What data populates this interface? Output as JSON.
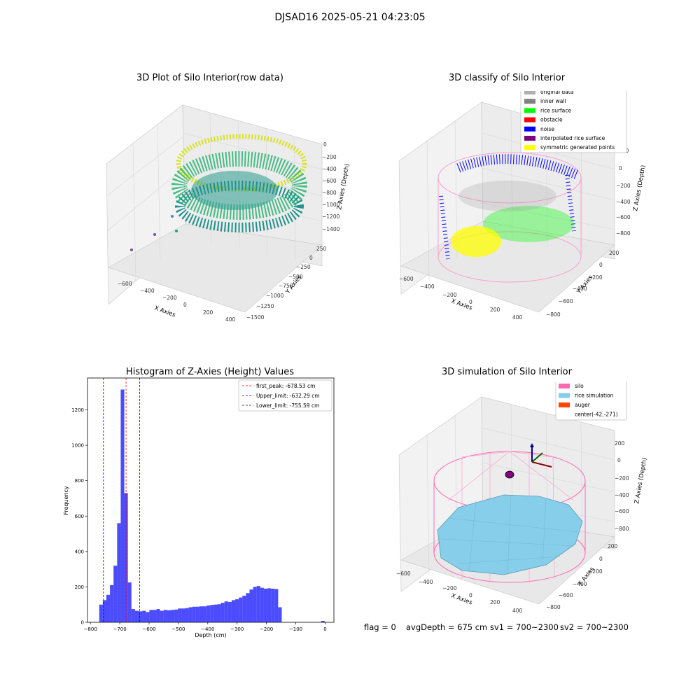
{
  "figure": {
    "suptitle": "DJSAD16 2025-05-21 04:23:05"
  },
  "panels": {
    "raw": {
      "title": "3D Plot of Silo Interior(row data)",
      "xlabel": "X Axies",
      "ylabel": "Y Axies",
      "zlabel": "Z Axies (Depth)",
      "xticks": [
        "−600",
        "−400",
        "−200",
        "0",
        "200",
        "400"
      ],
      "yticks": [
        "250",
        "0",
        "−250",
        "−500",
        "−750",
        "−1000",
        "−1250",
        "−1500"
      ],
      "zticks": [
        "0",
        "−200",
        "−400",
        "−600",
        "−800",
        "−1000",
        "−1200",
        "−1400"
      ]
    },
    "classify": {
      "title": "3D classify of Silo Interior",
      "xlabel": "X Axies",
      "ylabel": "Y Axies",
      "zlabel": "Z Axies (Depth)",
      "xticks": [
        "−600",
        "−400",
        "−200",
        "0",
        "200",
        "400"
      ],
      "yticks": [
        "200",
        "0",
        "−200",
        "−400",
        "−600",
        "−800"
      ],
      "zticks": [
        "200",
        "0",
        "−200",
        "−400",
        "−600",
        "−800"
      ],
      "legend": [
        {
          "label": "original data",
          "color": "#b0b0b0"
        },
        {
          "label": "inner wall",
          "color": "#808080"
        },
        {
          "label": "rice surface",
          "color": "#00ff00"
        },
        {
          "label": "obstacle",
          "color": "#ff0000"
        },
        {
          "label": "noise",
          "color": "#0000ff"
        },
        {
          "label": "interpolated rice surface",
          "color": "#800080"
        },
        {
          "label": "symmetric generated points",
          "color": "#ffff00"
        }
      ]
    },
    "simulation": {
      "title": "3D simulation of Silo Interior",
      "xlabel": "X Axies",
      "ylabel": "Y Axies",
      "zlabel": "Z Axies (Depth)",
      "xticks": [
        "−600",
        "−400",
        "−200",
        "0",
        "200",
        "400"
      ],
      "yticks": [
        "200",
        "0",
        "−200",
        "−400",
        "−600",
        "−800"
      ],
      "zticks": [
        "200",
        "0",
        "−200",
        "−400",
        "−600",
        "−800"
      ],
      "legend": [
        {
          "label": "silo",
          "color": "#ff69b4"
        },
        {
          "label": "rice simulation",
          "color": "#87ceeb"
        },
        {
          "label": "auger",
          "color": "#ff4500"
        },
        {
          "label": "center(-42,-271)",
          "color": ""
        }
      ]
    }
  },
  "status": {
    "flag": "flag = 0",
    "avg": "avgDepth = 675 cm",
    "sv1": "sv1 = 700~2300",
    "sv2": "sv2 = 700~2300"
  },
  "chart_data": [
    {
      "type": "bar",
      "title": "Histogram of Z-Axies (Height) Values",
      "xlabel": "Depth (cm)",
      "ylabel": "Frequency",
      "xlim": [
        -810,
        30
      ],
      "ylim": [
        0,
        1380
      ],
      "xticks": [
        -800,
        -700,
        -600,
        -500,
        -400,
        -300,
        -200,
        -100,
        0
      ],
      "xtick_labels": [
        "−800",
        "−700",
        "−600",
        "−500",
        "−400",
        "−300",
        "−200",
        "−100",
        "0"
      ],
      "yticks": [
        0,
        200,
        400,
        600,
        800,
        1000,
        1200
      ],
      "bar_color": "#0000ff",
      "bar_opacity": 0.7,
      "bin_width": 12.2,
      "bin_starts": [
        -770,
        -757.8,
        -745.6,
        -733.4,
        -721.2,
        -709,
        -696.8,
        -684.6,
        -672.4,
        -660.2,
        -648,
        -635.8,
        -623.6,
        -611.4,
        -599.2,
        -587,
        -574.8,
        -562.6,
        -550.4,
        -538.2,
        -526,
        -513.8,
        -501.6,
        -489.4,
        -477.2,
        -465,
        -452.8,
        -440.6,
        -428.4,
        -416.2,
        -404,
        -391.8,
        -379.6,
        -367.4,
        -355.2,
        -343,
        -330.8,
        -318.6,
        -306.4,
        -294.2,
        -282,
        -269.8,
        -257.6,
        -245.4,
        -233.2,
        -221,
        -208.8,
        -196.6,
        -184.4,
        -172.2,
        -160,
        -147.8,
        -135.6,
        -123.4,
        -111.2,
        -99,
        -86.8,
        -74.6,
        -62.4,
        -50.2,
        -38,
        -25.8,
        -13.6,
        -1.4
      ],
      "values": [
        100,
        125,
        155,
        210,
        320,
        560,
        1315,
        730,
        225,
        75,
        65,
        62,
        65,
        58,
        70,
        70,
        75,
        65,
        70,
        68,
        70,
        72,
        78,
        78,
        80,
        85,
        88,
        88,
        90,
        90,
        95,
        98,
        100,
        102,
        110,
        118,
        115,
        125,
        130,
        140,
        150,
        165,
        185,
        200,
        205,
        195,
        190,
        192,
        190,
        188,
        85,
        0,
        0,
        0,
        0,
        0,
        0,
        0,
        0,
        0,
        0,
        0,
        8,
        0
      ],
      "vlines": [
        {
          "label": "first_peak: -678.53 cm",
          "x": -678.53,
          "color": "#ff0000"
        },
        {
          "label": "Upper_limit: -632.29 cm",
          "x": -632.29,
          "color": "#0000cc"
        },
        {
          "label": "Lower_limit: -755.59 cm",
          "x": -755.59,
          "color": "#0000cc"
        }
      ],
      "legend_position": "upper right"
    }
  ]
}
